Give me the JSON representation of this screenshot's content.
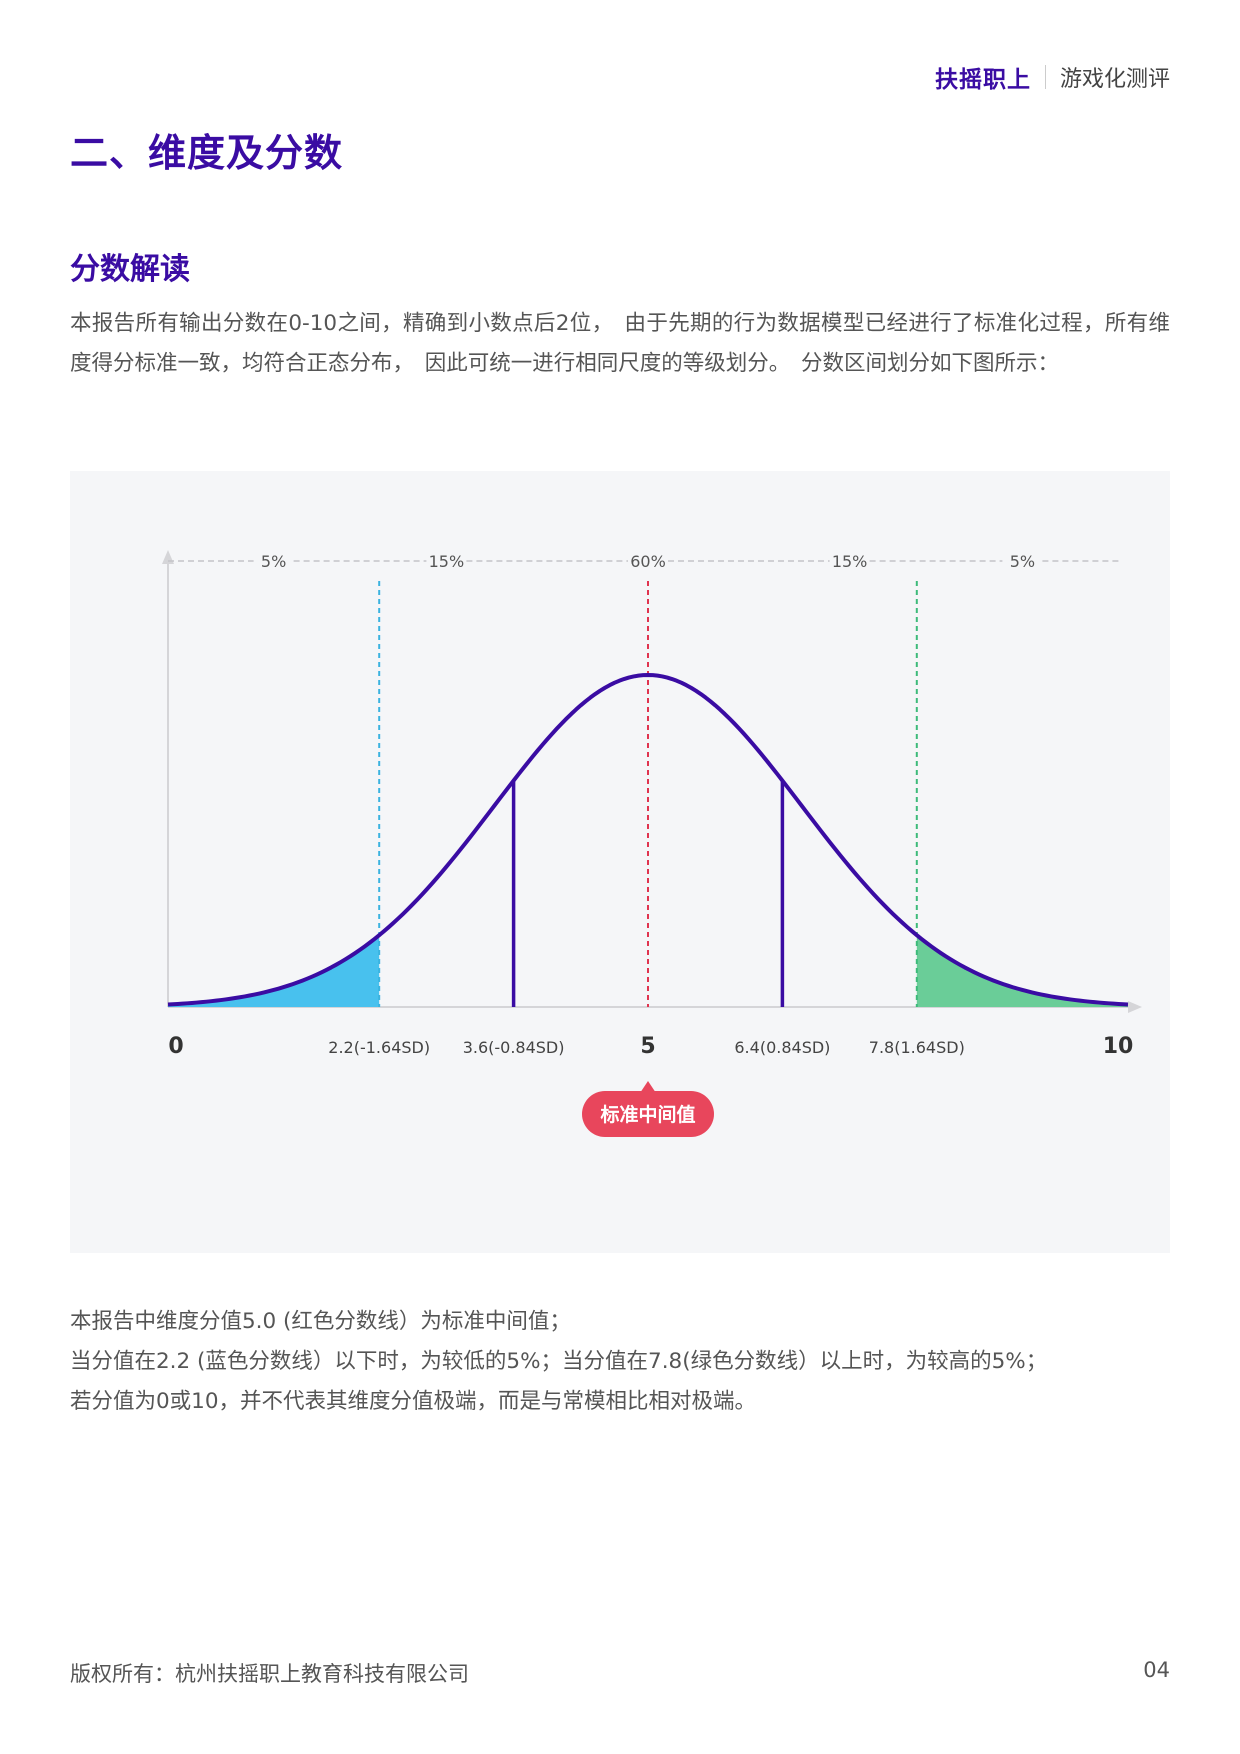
{
  "header": {
    "brand": "扶摇职上",
    "subtitle": "游戏化测评"
  },
  "section_title": "二、维度及分数",
  "subsection_title": "分数解读",
  "intro_text": "本报告所有输出分数在0-10之间，精确到小数点后2位，　由于先期的行为数据模型已经进行了标准化过程，所有维度得分标准一致，均符合正态分布，　因此可统一进行相同尺度的等级划分。　分数区间划分如下图所示：",
  "chart_data": {
    "type": "normal-distribution",
    "title": "",
    "xlabel": "",
    "ylabel": "",
    "xlim": [
      0,
      10
    ],
    "mean": 5,
    "tick_labels": [
      {
        "x": 0,
        "label": "0",
        "bold": true
      },
      {
        "x": 2.2,
        "label": "2.2(-1.64SD)",
        "bold": false
      },
      {
        "x": 3.6,
        "label": "3.6(-0.84SD)",
        "bold": false
      },
      {
        "x": 5,
        "label": "5",
        "bold": true
      },
      {
        "x": 6.4,
        "label": "6.4(0.84SD)",
        "bold": false
      },
      {
        "x": 7.8,
        "label": "7.8(1.64SD)",
        "bold": false
      },
      {
        "x": 10,
        "label": "10",
        "bold": true
      }
    ],
    "bands": [
      {
        "from": 0,
        "to": 2.2,
        "label": "5%"
      },
      {
        "from": 2.2,
        "to": 3.6,
        "label": "15%"
      },
      {
        "from": 3.6,
        "to": 6.4,
        "label": "60%"
      },
      {
        "from": 6.4,
        "to": 7.8,
        "label": "15%"
      },
      {
        "from": 7.8,
        "to": 10,
        "label": "5%"
      }
    ],
    "cutoff_lines": [
      {
        "x": 2.2,
        "color": "#3bb3e0",
        "style": "dashed"
      },
      {
        "x": 3.6,
        "color": "#3a0ca3",
        "style": "solid"
      },
      {
        "x": 5,
        "color": "#e0344f",
        "style": "dashed"
      },
      {
        "x": 6.4,
        "color": "#3a0ca3",
        "style": "solid"
      },
      {
        "x": 7.8,
        "color": "#3dbb7a",
        "style": "dashed"
      }
    ],
    "shaded_tails": [
      {
        "from": 0,
        "to": 2.2,
        "color": "#48c1ee"
      },
      {
        "from": 7.8,
        "to": 10,
        "color": "#6acd98"
      }
    ],
    "curve_color": "#3a0ca3",
    "mean_badge": {
      "label": "标准中间值",
      "color": "#e8465c"
    }
  },
  "notes": [
    "本报告中维度分值5.0 (红色分数线）为标准中间值；",
    "当分值在2.2 (蓝色分数线）以下时，为较低的5%；当分值在7.8(绿色分数线）以上时，为较高的5%；",
    "若分值为0或10，并不代表其维度分值极端，而是与常模相比相对极端。"
  ],
  "footer": {
    "copyright": "版权所有：杭州扶摇职上教育科技有限公司",
    "page_number": "04"
  }
}
